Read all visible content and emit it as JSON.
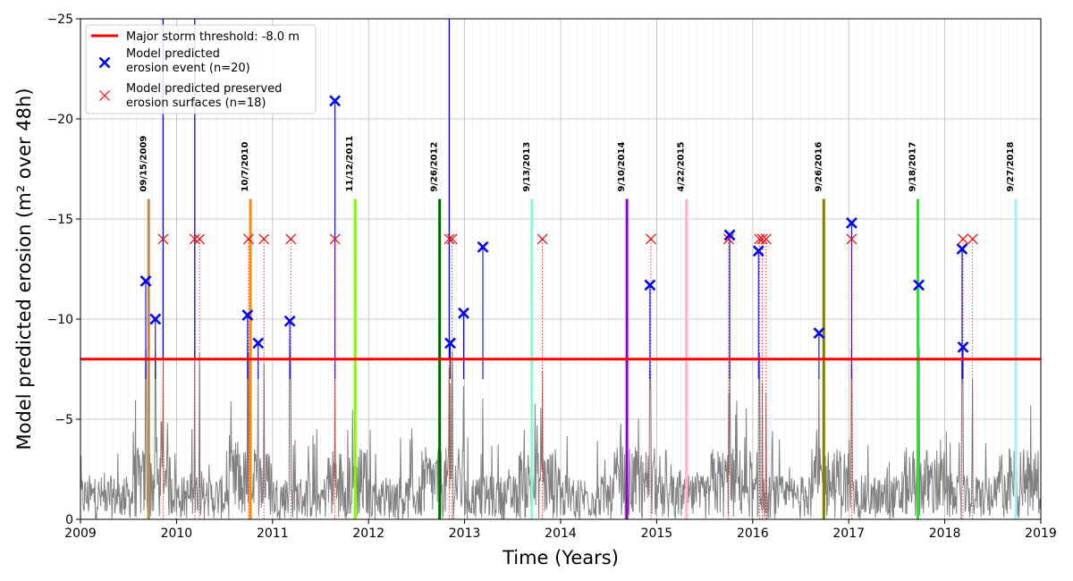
{
  "chart_data": {
    "type": "line",
    "xlabel": "Time (Years)",
    "ylabel": "Model predicted erosion (m² over 48h)",
    "xlim": [
      2009,
      2019
    ],
    "ylim": [
      0,
      -25
    ],
    "y_inverted": true,
    "grid": true,
    "legend_position": "top-left",
    "x_ticks": [
      2009,
      2010,
      2011,
      2012,
      2013,
      2014,
      2015,
      2016,
      2017,
      2018,
      2019
    ],
    "y_ticks": [
      0,
      -5,
      -10,
      -15,
      -20,
      -25
    ],
    "y_tick_labels": [
      "0",
      "−5",
      "−10",
      "−15",
      "−20",
      "−25"
    ],
    "threshold": {
      "value": -8.0,
      "label": "Major storm threshold: -8.0 m",
      "color": "#ff0000"
    },
    "series": [
      {
        "name": "Model predicted\nerosion event (n=20)",
        "legend_lines": [
          "Model predicted",
          "erosion event (n=20)"
        ],
        "color": "#0000ff",
        "marker": "x",
        "points": [
          {
            "x": 2009.68,
            "y": -11.9
          },
          {
            "x": 2009.78,
            "y": -10.0
          },
          {
            "x": 2010.74,
            "y": -10.2
          },
          {
            "x": 2010.85,
            "y": -8.8
          },
          {
            "x": 2011.18,
            "y": -9.9
          },
          {
            "x": 2011.65,
            "y": -20.9
          },
          {
            "x": 2012.85,
            "y": -8.8
          },
          {
            "x": 2012.99,
            "y": -10.3
          },
          {
            "x": 2013.19,
            "y": -13.6
          },
          {
            "x": 2014.93,
            "y": -11.7
          },
          {
            "x": 2015.76,
            "y": -14.2
          },
          {
            "x": 2016.06,
            "y": -13.4
          },
          {
            "x": 2016.69,
            "y": -9.3
          },
          {
            "x": 2017.03,
            "y": -14.8
          },
          {
            "x": 2017.73,
            "y": -11.7
          },
          {
            "x": 2018.18,
            "y": -13.5
          },
          {
            "x": 2018.19,
            "y": -8.6
          }
        ]
      },
      {
        "name": "Model predicted preserved\nerosion surfaces (n=18)",
        "legend_lines": [
          "Model predicted preserved",
          "erosion surfaces (n=18)"
        ],
        "color": "#ff0000",
        "marker": "x",
        "points": [
          {
            "x": 2009.86,
            "y": -14.0
          },
          {
            "x": 2010.19,
            "y": -14.0
          },
          {
            "x": 2010.24,
            "y": -14.0
          },
          {
            "x": 2010.75,
            "y": -14.0
          },
          {
            "x": 2010.91,
            "y": -14.0
          },
          {
            "x": 2011.19,
            "y": -14.0
          },
          {
            "x": 2011.65,
            "y": -14.0
          },
          {
            "x": 2012.84,
            "y": -14.0
          },
          {
            "x": 2012.87,
            "y": -14.0
          },
          {
            "x": 2013.81,
            "y": -14.0
          },
          {
            "x": 2014.94,
            "y": -14.0
          },
          {
            "x": 2015.75,
            "y": -14.0
          },
          {
            "x": 2016.07,
            "y": -14.0
          },
          {
            "x": 2016.1,
            "y": -14.0
          },
          {
            "x": 2016.14,
            "y": -14.0
          },
          {
            "x": 2017.03,
            "y": -14.0
          },
          {
            "x": 2018.19,
            "y": -14.0
          },
          {
            "x": 2018.29,
            "y": -14.0
          }
        ]
      }
    ],
    "storm_dates": [
      {
        "label": "09/15/2009",
        "x": 2009.71,
        "color": "#cd853f"
      },
      {
        "label": "10/7/2010",
        "x": 2010.77,
        "color": "#ff8c00"
      },
      {
        "label": "11/12/2011",
        "x": 2011.86,
        "color": "#7cfc00"
      },
      {
        "label": "9/26/2012",
        "x": 2012.74,
        "color": "#006400"
      },
      {
        "label": "9/13/2013",
        "x": 2013.7,
        "color": "#7fffd4"
      },
      {
        "label": "9/10/2014",
        "x": 2014.69,
        "color": "#9400d3"
      },
      {
        "label": "4/22/2015",
        "x": 2015.31,
        "color": "#ffb6c1"
      },
      {
        "label": "9/26/2016",
        "x": 2016.74,
        "color": "#808000"
      },
      {
        "label": "9/18/2017",
        "x": 2017.72,
        "color": "#00ff00"
      },
      {
        "label": "9/27/2018",
        "x": 2018.74,
        "color": "#98f5ff"
      }
    ],
    "storm_line_top": -16,
    "tall_spikes": [
      {
        "x": 2009.86,
        "y": -25
      },
      {
        "x": 2010.19,
        "y": -25
      },
      {
        "x": 2012.84,
        "y": -25
      }
    ],
    "background_color": "#808080"
  }
}
